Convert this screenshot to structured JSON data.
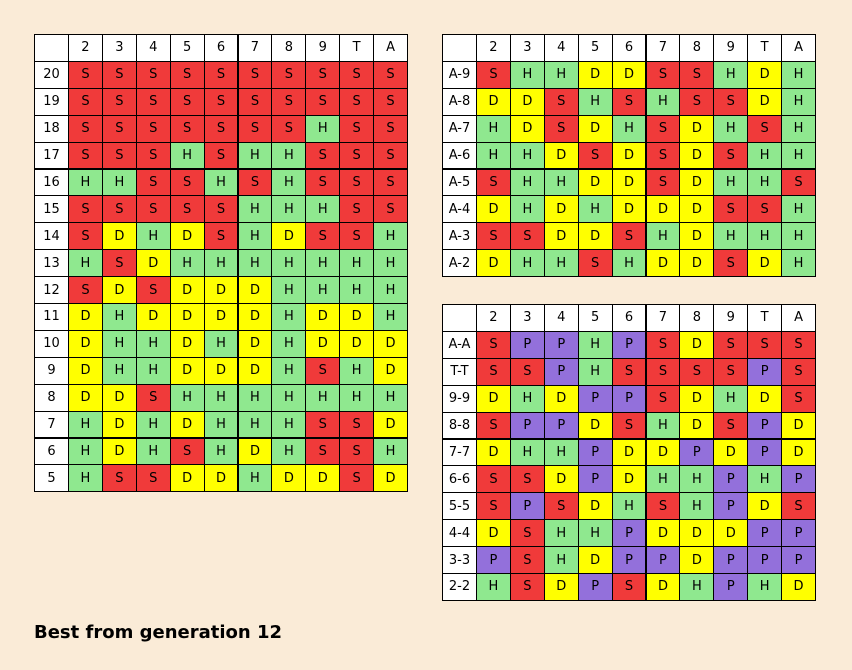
{
  "title": "Best from generation 12",
  "colors": {
    "S": "#f03a3a",
    "H": "#8fe88f",
    "D": "#ffff00",
    "P": "#9370db"
  },
  "tables": [
    {
      "columns": [
        "2",
        "3",
        "4",
        "5",
        "6",
        "7",
        "8",
        "9",
        "T",
        "A"
      ],
      "rows": [
        {
          "label": "20",
          "cells": [
            "S",
            "S",
            "S",
            "S",
            "S",
            "S",
            "S",
            "S",
            "S",
            "S"
          ]
        },
        {
          "label": "19",
          "cells": [
            "S",
            "S",
            "S",
            "S",
            "S",
            "S",
            "S",
            "S",
            "S",
            "S"
          ]
        },
        {
          "label": "18",
          "cells": [
            "S",
            "S",
            "S",
            "S",
            "S",
            "S",
            "S",
            "H",
            "S",
            "S"
          ]
        },
        {
          "label": "17",
          "cells": [
            "S",
            "S",
            "S",
            "H",
            "S",
            "H",
            "H",
            "S",
            "S",
            "S"
          ]
        },
        {
          "label": "16",
          "cells": [
            "H",
            "H",
            "S",
            "S",
            "H",
            "S",
            "H",
            "S",
            "S",
            "S"
          ]
        },
        {
          "label": "15",
          "cells": [
            "S",
            "S",
            "S",
            "S",
            "S",
            "H",
            "H",
            "H",
            "S",
            "S"
          ]
        },
        {
          "label": "14",
          "cells": [
            "S",
            "D",
            "H",
            "D",
            "S",
            "H",
            "D",
            "S",
            "S",
            "H"
          ]
        },
        {
          "label": "13",
          "cells": [
            "H",
            "S",
            "D",
            "H",
            "H",
            "H",
            "H",
            "H",
            "H",
            "H"
          ]
        },
        {
          "label": "12",
          "cells": [
            "S",
            "D",
            "S",
            "D",
            "D",
            "D",
            "H",
            "H",
            "H",
            "H"
          ]
        },
        {
          "label": "11",
          "cells": [
            "D",
            "H",
            "D",
            "D",
            "D",
            "D",
            "H",
            "D",
            "D",
            "H"
          ]
        },
        {
          "label": "10",
          "cells": [
            "D",
            "H",
            "H",
            "D",
            "H",
            "D",
            "H",
            "D",
            "D",
            "D"
          ]
        },
        {
          "label": "9",
          "cells": [
            "D",
            "H",
            "H",
            "D",
            "D",
            "D",
            "H",
            "S",
            "H",
            "D"
          ]
        },
        {
          "label": "8",
          "cells": [
            "D",
            "D",
            "S",
            "H",
            "H",
            "H",
            "H",
            "H",
            "H",
            "H"
          ]
        },
        {
          "label": "7",
          "cells": [
            "H",
            "D",
            "H",
            "D",
            "H",
            "H",
            "H",
            "S",
            "S",
            "D"
          ]
        },
        {
          "label": "6",
          "cells": [
            "H",
            "D",
            "H",
            "S",
            "H",
            "D",
            "H",
            "S",
            "S",
            "H"
          ]
        },
        {
          "label": "5",
          "cells": [
            "H",
            "S",
            "S",
            "D",
            "D",
            "H",
            "D",
            "D",
            "S",
            "D"
          ]
        }
      ]
    },
    {
      "columns": [
        "2",
        "3",
        "4",
        "5",
        "6",
        "7",
        "8",
        "9",
        "T",
        "A"
      ],
      "rows": [
        {
          "label": "A-9",
          "cells": [
            "S",
            "H",
            "H",
            "D",
            "D",
            "S",
            "S",
            "H",
            "D",
            "H"
          ]
        },
        {
          "label": "A-8",
          "cells": [
            "D",
            "D",
            "S",
            "H",
            "S",
            "H",
            "S",
            "S",
            "D",
            "H"
          ]
        },
        {
          "label": "A-7",
          "cells": [
            "H",
            "D",
            "S",
            "D",
            "H",
            "S",
            "D",
            "H",
            "S",
            "H"
          ]
        },
        {
          "label": "A-6",
          "cells": [
            "H",
            "H",
            "D",
            "S",
            "D",
            "S",
            "D",
            "S",
            "H",
            "H"
          ]
        },
        {
          "label": "A-5",
          "cells": [
            "S",
            "H",
            "H",
            "D",
            "D",
            "S",
            "D",
            "H",
            "H",
            "S"
          ]
        },
        {
          "label": "A-4",
          "cells": [
            "D",
            "H",
            "D",
            "H",
            "D",
            "D",
            "D",
            "S",
            "S",
            "H"
          ]
        },
        {
          "label": "A-3",
          "cells": [
            "S",
            "S",
            "D",
            "D",
            "S",
            "H",
            "D",
            "H",
            "H",
            "H"
          ]
        },
        {
          "label": "A-2",
          "cells": [
            "D",
            "H",
            "H",
            "S",
            "H",
            "D",
            "D",
            "S",
            "D",
            "H"
          ]
        }
      ]
    },
    {
      "columns": [
        "2",
        "3",
        "4",
        "5",
        "6",
        "7",
        "8",
        "9",
        "T",
        "A"
      ],
      "rows": [
        {
          "label": "A-A",
          "cells": [
            "S",
            "P",
            "P",
            "H",
            "P",
            "S",
            "D",
            "S",
            "S",
            "S"
          ]
        },
        {
          "label": "T-T",
          "cells": [
            "S",
            "S",
            "P",
            "H",
            "S",
            "S",
            "S",
            "S",
            "P",
            "S"
          ]
        },
        {
          "label": "9-9",
          "cells": [
            "D",
            "H",
            "D",
            "P",
            "P",
            "S",
            "D",
            "H",
            "D",
            "S"
          ]
        },
        {
          "label": "8-8",
          "cells": [
            "S",
            "P",
            "P",
            "D",
            "S",
            "H",
            "D",
            "S",
            "P",
            "D"
          ]
        },
        {
          "label": "7-7",
          "cells": [
            "D",
            "H",
            "H",
            "P",
            "D",
            "D",
            "P",
            "D",
            "P",
            "D"
          ]
        },
        {
          "label": "6-6",
          "cells": [
            "S",
            "S",
            "D",
            "P",
            "D",
            "H",
            "H",
            "P",
            "H",
            "P"
          ]
        },
        {
          "label": "5-5",
          "cells": [
            "S",
            "P",
            "S",
            "D",
            "H",
            "S",
            "H",
            "P",
            "D",
            "S"
          ]
        },
        {
          "label": "4-4",
          "cells": [
            "D",
            "S",
            "H",
            "H",
            "P",
            "D",
            "D",
            "D",
            "P",
            "P"
          ]
        },
        {
          "label": "3-3",
          "cells": [
            "P",
            "S",
            "H",
            "D",
            "P",
            "P",
            "D",
            "P",
            "P",
            "P"
          ]
        },
        {
          "label": "2-2",
          "cells": [
            "H",
            "S",
            "D",
            "P",
            "S",
            "D",
            "H",
            "P",
            "H",
            "D"
          ]
        }
      ]
    }
  ]
}
